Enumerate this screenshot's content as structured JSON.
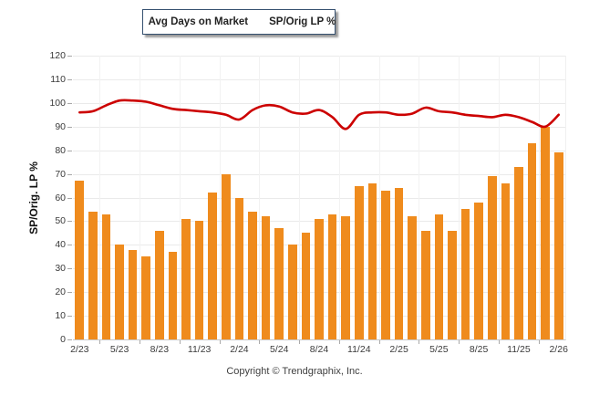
{
  "footer": {
    "copyright": "Copyright © Trendgraphix, Inc."
  },
  "colors": {
    "bar": "#EF8B1D",
    "line": "#CC0000",
    "legend_border": "#35506F",
    "grid": "#EAEAEA",
    "axis": "#C8C8C8"
  },
  "chart_data": {
    "type": "bar",
    "subtype": "bar+line combo",
    "title": "",
    "xlabel": "",
    "ylabel": "SP/Orig. LP %",
    "y_axis": {
      "min": 0,
      "max": 120,
      "step": 10
    },
    "grid": "horizontal-light",
    "legend_position": "top-center",
    "x_tick_every": 3,
    "categories": [
      "2/23",
      "3/23",
      "4/23",
      "5/23",
      "6/23",
      "7/23",
      "8/23",
      "9/23",
      "10/23",
      "11/23",
      "12/23",
      "1/24",
      "2/24",
      "3/24",
      "4/24",
      "5/24",
      "6/24",
      "7/24",
      "8/24",
      "9/24",
      "10/24",
      "11/24",
      "12/24",
      "1/25",
      "2/25",
      "3/25",
      "4/25",
      "5/25",
      "6/25",
      "7/25",
      "8/25",
      "9/25",
      "10/25",
      "11/25",
      "12/25",
      "1/26",
      "2/26"
    ],
    "x_tick_labels": [
      "2/23",
      "5/23",
      "8/23",
      "11/23",
      "2/24",
      "5/24",
      "8/24",
      "11/24",
      "2/25",
      "5/25",
      "8/25",
      "11/25",
      "2/26"
    ],
    "series": [
      {
        "name": "Avg Days on Market",
        "type": "bar",
        "color": "#EF8B1D",
        "values": [
          67,
          54,
          53,
          40,
          38,
          35,
          46,
          37,
          51,
          50,
          62,
          70,
          60,
          54,
          52,
          47,
          40,
          45,
          51,
          53,
          52,
          65,
          66,
          63,
          64,
          52,
          46,
          53,
          46,
          55,
          58,
          69,
          66,
          73,
          83,
          90,
          79
        ]
      },
      {
        "name": "SP/Orig LP %",
        "type": "line",
        "color": "#CC0000",
        "values": [
          96,
          96.5,
          99,
          101,
          101,
          100.5,
          99,
          97.5,
          97,
          96.5,
          96,
          95,
          93,
          97,
          99,
          98.5,
          96,
          95.5,
          97,
          94,
          89,
          95,
          96,
          96,
          95,
          95.5,
          98,
          96.5,
          96,
          95,
          94.5,
          94,
          95,
          94,
          92,
          90,
          95
        ]
      }
    ]
  }
}
